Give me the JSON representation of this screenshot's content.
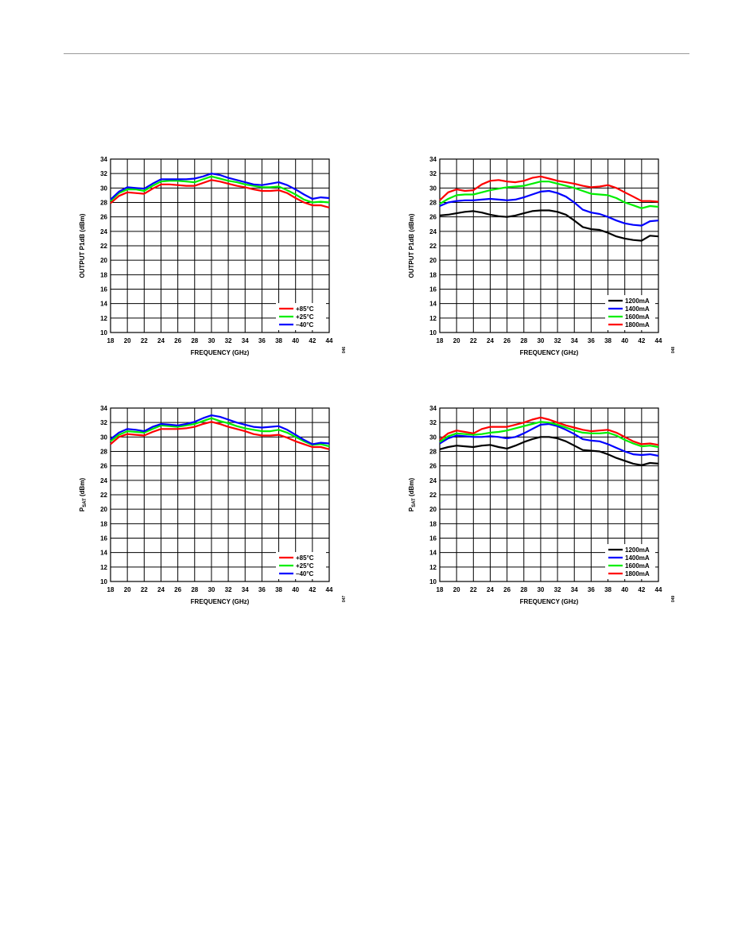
{
  "colors": {
    "red": "#ff0000",
    "green": "#00ee00",
    "blue": "#0000ff",
    "black": "#000000"
  },
  "chart_data": [
    {
      "type": "line",
      "xlabel": "FREQUENCY (GHz)",
      "ylabel_main": "OUTPUT P1dB (dBm)",
      "ylabel_sub": "",
      "ylabel_tail": "",
      "xlim": [
        18,
        44
      ],
      "ylim": [
        10,
        34
      ],
      "xticks": [
        "18",
        "20",
        "22",
        "24",
        "26",
        "28",
        "30",
        "32",
        "34",
        "36",
        "38",
        "40",
        "42",
        "44"
      ],
      "yticks": [
        "10",
        "12",
        "14",
        "16",
        "18",
        "20",
        "22",
        "24",
        "26",
        "28",
        "30",
        "32",
        "34"
      ],
      "grid": true,
      "legend": "bottom-right",
      "fig_id": "046",
      "x": [
        18,
        19,
        20,
        21,
        22,
        23,
        24,
        25,
        26,
        27,
        28,
        29,
        30,
        31,
        32,
        33,
        34,
        35,
        36,
        37,
        38,
        39,
        40,
        41,
        42,
        43,
        44
      ],
      "series": [
        {
          "name": "+85°C",
          "color": "#ff0000",
          "values": [
            27.9,
            28.9,
            29.4,
            29.3,
            29.2,
            29.9,
            30.5,
            30.5,
            30.4,
            30.3,
            30.3,
            30.7,
            31.1,
            30.9,
            30.6,
            30.3,
            30.1,
            29.8,
            29.6,
            29.6,
            29.7,
            29.3,
            28.6,
            28.0,
            27.6,
            27.6,
            27.3
          ]
        },
        {
          "name": "+25°C",
          "color": "#00ee00",
          "values": [
            28.2,
            29.3,
            29.8,
            29.8,
            29.6,
            30.3,
            30.9,
            31.0,
            31.0,
            30.9,
            30.8,
            31.2,
            31.6,
            31.3,
            31.0,
            30.8,
            30.5,
            30.3,
            30.1,
            30.1,
            30.2,
            29.7,
            29.1,
            28.4,
            28.0,
            28.1,
            28.0
          ]
        },
        {
          "name": "–40°C",
          "color": "#0000ff",
          "values": [
            28.4,
            29.5,
            30.1,
            30.0,
            29.9,
            30.6,
            31.2,
            31.2,
            31.2,
            31.2,
            31.3,
            31.6,
            32.0,
            31.8,
            31.4,
            31.1,
            30.8,
            30.5,
            30.4,
            30.6,
            30.8,
            30.4,
            29.8,
            29.1,
            28.5,
            28.7,
            28.6
          ]
        }
      ]
    },
    {
      "type": "line",
      "xlabel": "FREQUENCY (GHz)",
      "ylabel_main": "OUTPUT P1dB (dBm)",
      "ylabel_sub": "",
      "ylabel_tail": "",
      "xlim": [
        18,
        44
      ],
      "ylim": [
        10,
        34
      ],
      "xticks": [
        "18",
        "20",
        "22",
        "24",
        "26",
        "28",
        "30",
        "32",
        "34",
        "36",
        "38",
        "40",
        "42",
        "44"
      ],
      "yticks": [
        "10",
        "12",
        "14",
        "16",
        "18",
        "20",
        "22",
        "24",
        "26",
        "28",
        "30",
        "32",
        "34"
      ],
      "grid": true,
      "legend": "bottom-right",
      "fig_id": "048",
      "x": [
        18,
        19,
        20,
        21,
        22,
        23,
        24,
        25,
        26,
        27,
        28,
        29,
        30,
        31,
        32,
        33,
        34,
        35,
        36,
        37,
        38,
        39,
        40,
        41,
        42,
        43,
        44
      ],
      "series": [
        {
          "name": "1200mA",
          "color": "#000000",
          "values": [
            26.2,
            26.3,
            26.5,
            26.7,
            26.8,
            26.6,
            26.3,
            26.1,
            26.0,
            26.2,
            26.5,
            26.8,
            26.9,
            26.9,
            26.7,
            26.3,
            25.5,
            24.6,
            24.3,
            24.2,
            23.8,
            23.3,
            23.0,
            22.8,
            22.7,
            23.4,
            23.3
          ]
        },
        {
          "name": "1400mA",
          "color": "#0000ff",
          "values": [
            27.5,
            28.0,
            28.2,
            28.3,
            28.3,
            28.4,
            28.5,
            28.4,
            28.3,
            28.4,
            28.7,
            29.1,
            29.5,
            29.6,
            29.3,
            28.8,
            28.0,
            27.0,
            26.6,
            26.4,
            26.0,
            25.5,
            25.1,
            24.9,
            24.8,
            25.4,
            25.5
          ]
        },
        {
          "name": "1600mA",
          "color": "#00ee00",
          "values": [
            27.8,
            28.5,
            29.0,
            29.1,
            29.1,
            29.4,
            29.7,
            29.9,
            30.1,
            30.2,
            30.3,
            30.6,
            30.9,
            30.9,
            30.6,
            30.3,
            30.0,
            29.6,
            29.2,
            29.1,
            29.0,
            28.6,
            28.0,
            27.6,
            27.2,
            27.5,
            27.4
          ]
        },
        {
          "name": "1800mA",
          "color": "#ff0000",
          "values": [
            28.3,
            29.4,
            29.8,
            29.6,
            29.7,
            30.5,
            31.0,
            31.1,
            30.9,
            30.8,
            31.0,
            31.4,
            31.6,
            31.3,
            31.0,
            30.8,
            30.6,
            30.3,
            30.1,
            30.2,
            30.4,
            30.0,
            29.4,
            28.8,
            28.2,
            28.2,
            28.1
          ]
        }
      ]
    },
    {
      "type": "line",
      "xlabel": "FREQUENCY (GHz)",
      "ylabel_main": "P",
      "ylabel_sub": "SAT",
      "ylabel_tail": " (dBm)",
      "xlim": [
        18,
        44
      ],
      "ylim": [
        10,
        34
      ],
      "xticks": [
        "18",
        "20",
        "22",
        "24",
        "26",
        "28",
        "30",
        "32",
        "34",
        "36",
        "38",
        "40",
        "42",
        "44"
      ],
      "yticks": [
        "10",
        "12",
        "14",
        "16",
        "18",
        "20",
        "22",
        "24",
        "26",
        "28",
        "30",
        "32",
        "34"
      ],
      "grid": true,
      "legend": "bottom-right",
      "fig_id": "047",
      "x": [
        18,
        19,
        20,
        21,
        22,
        23,
        24,
        25,
        26,
        27,
        28,
        29,
        30,
        31,
        32,
        33,
        34,
        35,
        36,
        37,
        38,
        39,
        40,
        41,
        42,
        43,
        44
      ],
      "series": [
        {
          "name": "+85°C",
          "color": "#ff0000",
          "values": [
            29.0,
            30.0,
            30.4,
            30.3,
            30.2,
            30.7,
            31.1,
            31.1,
            31.1,
            31.2,
            31.4,
            31.8,
            32.1,
            31.8,
            31.4,
            31.1,
            30.8,
            30.4,
            30.2,
            30.2,
            30.3,
            29.9,
            29.4,
            29.0,
            28.6,
            28.6,
            28.3
          ]
        },
        {
          "name": "+25°C",
          "color": "#00ee00",
          "values": [
            29.4,
            30.3,
            30.8,
            30.7,
            30.6,
            31.1,
            31.6,
            31.5,
            31.4,
            31.6,
            31.8,
            32.2,
            32.6,
            32.2,
            31.9,
            31.5,
            31.2,
            31.0,
            30.8,
            30.8,
            31.0,
            30.6,
            30.0,
            29.4,
            28.9,
            29.0,
            28.7
          ]
        },
        {
          "name": "–40°C",
          "color": "#0000ff",
          "values": [
            29.7,
            30.6,
            31.1,
            31.0,
            30.8,
            31.4,
            31.8,
            31.7,
            31.6,
            31.8,
            32.1,
            32.6,
            33.0,
            32.8,
            32.4,
            32.0,
            31.7,
            31.4,
            31.3,
            31.4,
            31.5,
            31.0,
            30.3,
            29.6,
            29.0,
            29.2,
            29.1
          ]
        }
      ]
    },
    {
      "type": "line",
      "xlabel": "FREQUENCY (GHz)",
      "ylabel_main": "P",
      "ylabel_sub": "SAT",
      "ylabel_tail": " (dBm)",
      "xlim": [
        18,
        44
      ],
      "ylim": [
        10,
        34
      ],
      "xticks": [
        "18",
        "20",
        "22",
        "24",
        "26",
        "28",
        "30",
        "32",
        "34",
        "36",
        "38",
        "40",
        "42",
        "44"
      ],
      "yticks": [
        "10",
        "12",
        "14",
        "16",
        "18",
        "20",
        "22",
        "24",
        "26",
        "28",
        "30",
        "32",
        "34"
      ],
      "grid": true,
      "legend": "bottom-right",
      "fig_id": "049",
      "x": [
        18,
        19,
        20,
        21,
        22,
        23,
        24,
        25,
        26,
        27,
        28,
        29,
        30,
        31,
        32,
        33,
        34,
        35,
        36,
        37,
        38,
        39,
        40,
        41,
        42,
        43,
        44
      ],
      "series": [
        {
          "name": "1200mA",
          "color": "#000000",
          "values": [
            28.3,
            28.6,
            28.8,
            28.7,
            28.6,
            28.8,
            28.9,
            28.6,
            28.4,
            28.8,
            29.3,
            29.7,
            30.0,
            30.0,
            29.8,
            29.4,
            28.8,
            28.2,
            28.1,
            28.0,
            27.6,
            27.1,
            26.7,
            26.3,
            26.1,
            26.4,
            26.3
          ]
        },
        {
          "name": "1400mA",
          "color": "#0000ff",
          "values": [
            29.1,
            29.8,
            30.2,
            30.1,
            30.0,
            30.0,
            30.1,
            30.0,
            29.8,
            30.0,
            30.5,
            31.1,
            31.7,
            31.8,
            31.5,
            31.0,
            30.4,
            29.7,
            29.5,
            29.4,
            29.0,
            28.5,
            28.0,
            27.6,
            27.5,
            27.6,
            27.4
          ]
        },
        {
          "name": "1600mA",
          "color": "#00ee00",
          "values": [
            29.3,
            30.1,
            30.5,
            30.4,
            30.3,
            30.4,
            30.6,
            30.7,
            30.9,
            31.2,
            31.5,
            31.8,
            32.1,
            32.0,
            31.7,
            31.3,
            30.9,
            30.6,
            30.5,
            30.5,
            30.6,
            30.2,
            29.6,
            29.1,
            28.7,
            28.8,
            28.6
          ]
        },
        {
          "name": "1800mA",
          "color": "#ff0000",
          "values": [
            29.6,
            30.5,
            30.9,
            30.7,
            30.5,
            31.1,
            31.4,
            31.4,
            31.4,
            31.7,
            32.0,
            32.4,
            32.7,
            32.4,
            32.0,
            31.6,
            31.3,
            31.0,
            30.8,
            30.9,
            31.0,
            30.6,
            30.0,
            29.4,
            29.0,
            29.1,
            28.9
          ]
        }
      ]
    }
  ]
}
